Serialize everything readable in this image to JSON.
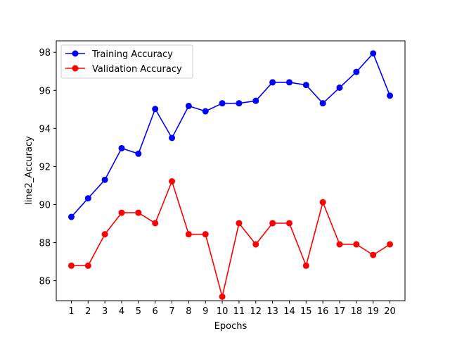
{
  "chart_data": {
    "type": "line",
    "title": "",
    "xlabel": "Epochs",
    "ylabel": "line2_Accuracy",
    "x": [
      1,
      2,
      3,
      4,
      5,
      6,
      7,
      8,
      9,
      10,
      11,
      12,
      13,
      14,
      15,
      16,
      17,
      18,
      19,
      20
    ],
    "xticks": [
      "1",
      "2",
      "3",
      "4",
      "5",
      "6",
      "7",
      "8",
      "9",
      "10",
      "11",
      "12",
      "13",
      "14",
      "15",
      "16",
      "17",
      "18",
      "19",
      "20"
    ],
    "yticks": [
      "86",
      "88",
      "90",
      "92",
      "94",
      "96",
      "98"
    ],
    "xlim": [
      0.1,
      20.9
    ],
    "ylim": [
      84.95,
      98.6
    ],
    "grid": false,
    "legend_position": "upper-left",
    "series": [
      {
        "name": "Training Accuracy",
        "color": "#0000ff",
        "marker": "circle",
        "values": [
          89.35,
          90.33,
          91.3,
          92.96,
          92.67,
          95.02,
          93.5,
          95.18,
          94.9,
          95.32,
          95.32,
          95.45,
          96.42,
          96.42,
          96.28,
          95.32,
          96.14,
          96.97,
          97.94,
          95.72
        ]
      },
      {
        "name": "Validation Accuracy",
        "color": "#ff0000",
        "marker": "circle",
        "values": [
          86.79,
          86.79,
          88.44,
          89.57,
          89.57,
          89.02,
          91.22,
          88.44,
          88.44,
          85.16,
          89.02,
          87.91,
          89.02,
          89.02,
          86.79,
          90.12,
          87.91,
          87.91,
          87.35,
          87.91
        ]
      }
    ]
  }
}
